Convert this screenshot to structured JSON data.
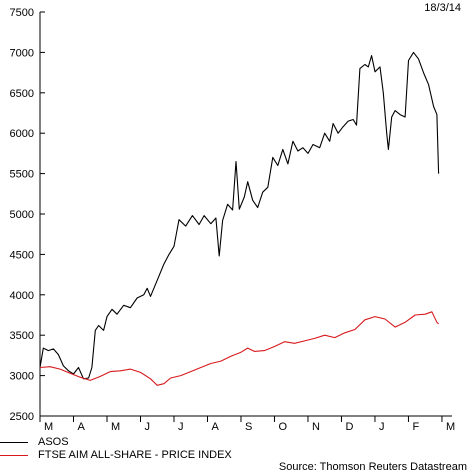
{
  "date_label": "18/3/14",
  "source": "Source: Thomson Reuters Datastream",
  "colors": {
    "ASOS": "#000000",
    "FTSE AIM ALL-SHARE - PRICE INDEX": "#d7191c"
  },
  "chart_data": {
    "type": "line",
    "title": "",
    "xlabel": "",
    "ylabel": "",
    "ylim": [
      2500,
      7500
    ],
    "yticks": [
      2500,
      3000,
      3500,
      4000,
      4500,
      5000,
      5500,
      6000,
      6500,
      7000,
      7500
    ],
    "months": [
      "M",
      "A",
      "M",
      "J",
      "J",
      "A",
      "S",
      "O",
      "N",
      "D",
      "J",
      "F",
      "M"
    ],
    "legend": [
      "ASOS",
      "FTSE AIM ALL-SHARE - PRICE INDEX"
    ],
    "legend_position": "bottom-left",
    "grid": false,
    "series": [
      {
        "name": "ASOS",
        "points": [
          [
            0.0,
            3100
          ],
          [
            0.1,
            3340
          ],
          [
            0.25,
            3310
          ],
          [
            0.4,
            3330
          ],
          [
            0.55,
            3260
          ],
          [
            0.7,
            3120
          ],
          [
            0.85,
            3060
          ],
          [
            1.0,
            3020
          ],
          [
            1.15,
            3100
          ],
          [
            1.3,
            2960
          ],
          [
            1.45,
            2970
          ],
          [
            1.55,
            3100
          ],
          [
            1.65,
            3560
          ],
          [
            1.75,
            3620
          ],
          [
            1.9,
            3560
          ],
          [
            2.0,
            3730
          ],
          [
            2.15,
            3820
          ],
          [
            2.3,
            3760
          ],
          [
            2.5,
            3870
          ],
          [
            2.7,
            3840
          ],
          [
            2.9,
            3960
          ],
          [
            3.1,
            4000
          ],
          [
            3.2,
            4080
          ],
          [
            3.3,
            3980
          ],
          [
            3.5,
            4180
          ],
          [
            3.7,
            4380
          ],
          [
            3.85,
            4500
          ],
          [
            4.0,
            4600
          ],
          [
            4.15,
            4930
          ],
          [
            4.35,
            4850
          ],
          [
            4.55,
            4980
          ],
          [
            4.75,
            4870
          ],
          [
            4.9,
            4980
          ],
          [
            5.1,
            4880
          ],
          [
            5.25,
            4950
          ],
          [
            5.35,
            4480
          ],
          [
            5.45,
            4920
          ],
          [
            5.6,
            5120
          ],
          [
            5.75,
            5050
          ],
          [
            5.85,
            5650
          ],
          [
            5.95,
            5060
          ],
          [
            6.1,
            5210
          ],
          [
            6.2,
            5400
          ],
          [
            6.35,
            5170
          ],
          [
            6.5,
            5080
          ],
          [
            6.65,
            5270
          ],
          [
            6.8,
            5330
          ],
          [
            6.95,
            5700
          ],
          [
            7.1,
            5600
          ],
          [
            7.25,
            5800
          ],
          [
            7.4,
            5620
          ],
          [
            7.55,
            5900
          ],
          [
            7.7,
            5780
          ],
          [
            7.85,
            5820
          ],
          [
            8.0,
            5750
          ],
          [
            8.15,
            5860
          ],
          [
            8.35,
            5820
          ],
          [
            8.5,
            6000
          ],
          [
            8.65,
            5900
          ],
          [
            8.75,
            6120
          ],
          [
            8.9,
            6000
          ],
          [
            9.05,
            6080
          ],
          [
            9.2,
            6150
          ],
          [
            9.35,
            6170
          ],
          [
            9.45,
            6100
          ],
          [
            9.55,
            6800
          ],
          [
            9.7,
            6850
          ],
          [
            9.8,
            6820
          ],
          [
            9.9,
            6960
          ],
          [
            10.0,
            6760
          ],
          [
            10.15,
            6820
          ],
          [
            10.25,
            6500
          ],
          [
            10.35,
            6000
          ],
          [
            10.4,
            5800
          ],
          [
            10.5,
            6200
          ],
          [
            10.6,
            6280
          ],
          [
            10.75,
            6230
          ],
          [
            10.9,
            6200
          ],
          [
            11.0,
            6900
          ],
          [
            11.15,
            7000
          ],
          [
            11.3,
            6920
          ],
          [
            11.45,
            6750
          ],
          [
            11.6,
            6600
          ],
          [
            11.75,
            6330
          ],
          [
            11.85,
            6230
          ],
          [
            11.9,
            5500
          ]
        ]
      },
      {
        "name": "FTSE AIM ALL-SHARE - PRICE INDEX",
        "points": [
          [
            0.0,
            3100
          ],
          [
            0.3,
            3110
          ],
          [
            0.6,
            3080
          ],
          [
            0.9,
            3030
          ],
          [
            1.2,
            2980
          ],
          [
            1.5,
            2940
          ],
          [
            1.8,
            2990
          ],
          [
            2.1,
            3050
          ],
          [
            2.4,
            3060
          ],
          [
            2.7,
            3080
          ],
          [
            3.0,
            3040
          ],
          [
            3.3,
            2960
          ],
          [
            3.5,
            2880
          ],
          [
            3.7,
            2900
          ],
          [
            3.9,
            2970
          ],
          [
            4.2,
            3000
          ],
          [
            4.5,
            3050
          ],
          [
            4.8,
            3100
          ],
          [
            5.1,
            3150
          ],
          [
            5.4,
            3180
          ],
          [
            5.7,
            3240
          ],
          [
            6.0,
            3290
          ],
          [
            6.2,
            3340
          ],
          [
            6.4,
            3300
          ],
          [
            6.7,
            3310
          ],
          [
            7.0,
            3360
          ],
          [
            7.3,
            3420
          ],
          [
            7.6,
            3400
          ],
          [
            7.9,
            3430
          ],
          [
            8.2,
            3460
          ],
          [
            8.5,
            3500
          ],
          [
            8.8,
            3470
          ],
          [
            9.1,
            3530
          ],
          [
            9.4,
            3570
          ],
          [
            9.7,
            3690
          ],
          [
            10.0,
            3730
          ],
          [
            10.3,
            3700
          ],
          [
            10.6,
            3600
          ],
          [
            10.9,
            3660
          ],
          [
            11.2,
            3750
          ],
          [
            11.5,
            3760
          ],
          [
            11.7,
            3790
          ],
          [
            11.85,
            3660
          ],
          [
            11.9,
            3640
          ]
        ]
      }
    ]
  }
}
